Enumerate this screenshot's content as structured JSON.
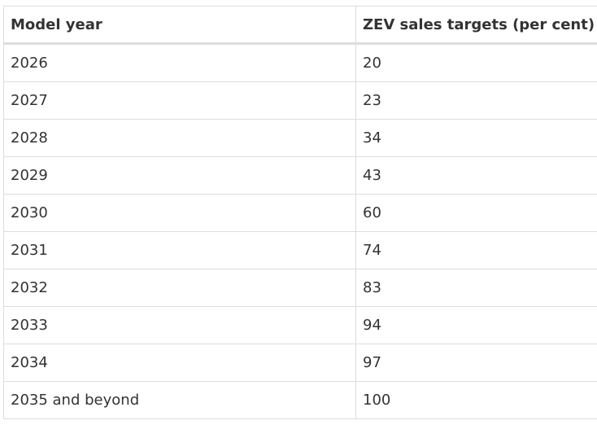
{
  "table": {
    "headers": [
      "Model year",
      "ZEV sales targets (per cent)"
    ],
    "rows": [
      [
        "2026",
        "20"
      ],
      [
        "2027",
        "23"
      ],
      [
        "2028",
        "34"
      ],
      [
        "2029",
        "43"
      ],
      [
        "2030",
        "60"
      ],
      [
        "2031",
        "74"
      ],
      [
        "2032",
        "83"
      ],
      [
        "2033",
        "94"
      ],
      [
        "2034",
        "97"
      ],
      [
        "2035 and beyond",
        "100"
      ]
    ]
  }
}
